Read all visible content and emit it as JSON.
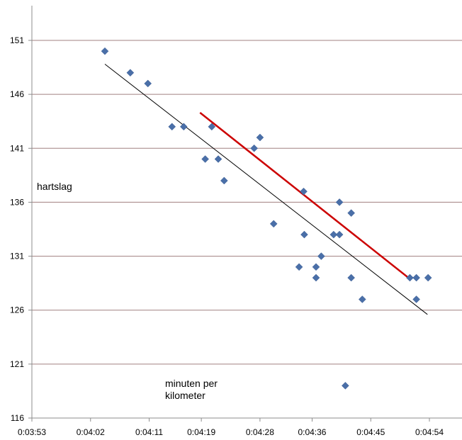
{
  "chart_data": {
    "type": "scatter",
    "title": "",
    "ylabel": "hartslag",
    "xlabel": "minuten per kilometer",
    "xlabel_lines": [
      "minuten per",
      "kilometer"
    ],
    "x_unit": "seconds",
    "xlim": [
      233,
      299
    ],
    "ylim": [
      116,
      152
    ],
    "y_ticks": [
      116,
      121,
      126,
      131,
      136,
      141,
      146,
      151
    ],
    "x_ticks": [
      {
        "value": 233,
        "label": "0:03:53"
      },
      {
        "value": 242,
        "label": "0:04:02"
      },
      {
        "value": 251,
        "label": "0:04:11"
      },
      {
        "value": 259,
        "label": "0:04:19"
      },
      {
        "value": 268,
        "label": "0:04:28"
      },
      {
        "value": 276,
        "label": "0:04:36"
      },
      {
        "value": 285,
        "label": "0:04:45"
      },
      {
        "value": 294,
        "label": "0:04:54"
      }
    ],
    "grid": "horizontal",
    "series": [
      {
        "name": "hartslag",
        "marker": "diamond",
        "color": "#4a6fa8",
        "points": [
          [
            244.2,
            150
          ],
          [
            248.1,
            148
          ],
          [
            250.8,
            147
          ],
          [
            254.5,
            143
          ],
          [
            256.3,
            143
          ],
          [
            259.6,
            140
          ],
          [
            260.6,
            143
          ],
          [
            261.6,
            140
          ],
          [
            262.5,
            138
          ],
          [
            267.1,
            141
          ],
          [
            268.0,
            142
          ],
          [
            270.1,
            134
          ],
          [
            274.0,
            130
          ],
          [
            274.7,
            137
          ],
          [
            274.8,
            133
          ],
          [
            276.6,
            130
          ],
          [
            276.6,
            129
          ],
          [
            277.4,
            131
          ],
          [
            279.3,
            133
          ],
          [
            280.2,
            136
          ],
          [
            280.2,
            133
          ],
          [
            281.1,
            119
          ],
          [
            282.0,
            135
          ],
          [
            282.0,
            129
          ],
          [
            283.7,
            127
          ],
          [
            291.0,
            129
          ],
          [
            292.0,
            129
          ],
          [
            292.0,
            127
          ],
          [
            293.8,
            129
          ]
        ]
      }
    ],
    "trendlines": [
      {
        "name": "trend-all",
        "color": "#000000",
        "width": 1,
        "from": [
          244.2,
          148.8
        ],
        "to": [
          293.7,
          125.6
        ]
      },
      {
        "name": "trend-red",
        "color": "#cc0000",
        "width": 2.5,
        "from": [
          258.8,
          144.3
        ],
        "to": [
          291.2,
          128.8
        ]
      }
    ]
  }
}
